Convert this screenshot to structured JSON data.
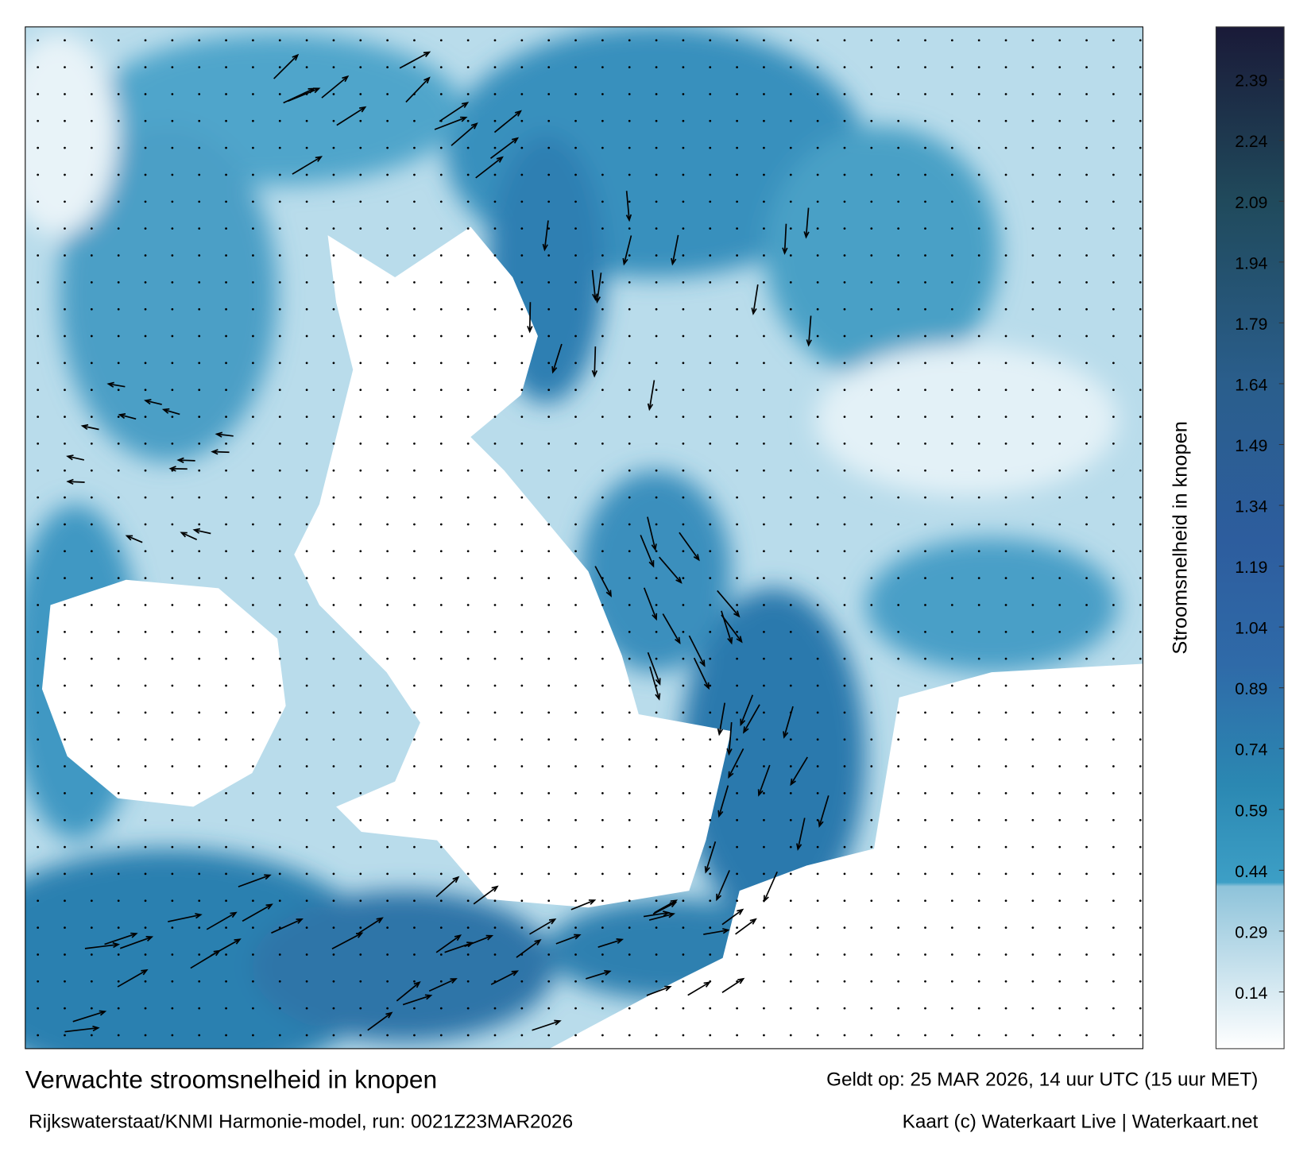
{
  "map": {
    "title": "Verwachte stroomsnelheid in knopen",
    "subtitle": "Rijkswaterstaat/KNMI Harmonie-model, run: 0021Z23MAR2026",
    "valid_time": "Geldt op: 25 MAR 2026, 14 uur UTC (15 uur MET)",
    "credit": "Kaart (c) Waterkaart Live | Waterkaart.net",
    "colorbar": {
      "label": "Stroomsnelheid in knopen",
      "lim": [
        0,
        2.52
      ],
      "ticks": [
        0.14,
        0.29,
        0.44,
        0.59,
        0.74,
        0.89,
        1.04,
        1.19,
        1.34,
        1.49,
        1.64,
        1.79,
        1.94,
        2.09,
        2.24,
        2.39
      ],
      "stops": [
        {
          "value": 0,
          "color": "#ffffff"
        },
        {
          "value": 0.4,
          "color": "#8ec3da"
        },
        {
          "value": 0.41,
          "color": "#3d9fc6"
        },
        {
          "value": 0.65,
          "color": "#2b88b2"
        },
        {
          "value": 0.95,
          "color": "#2f6aa8"
        },
        {
          "value": 1.25,
          "color": "#2d5d9e"
        },
        {
          "value": 1.64,
          "color": "#2a5e8c"
        },
        {
          "value": 2.09,
          "color": "#204a5c"
        },
        {
          "value": 2.52,
          "color": "#1a1a38"
        }
      ]
    }
  }
}
